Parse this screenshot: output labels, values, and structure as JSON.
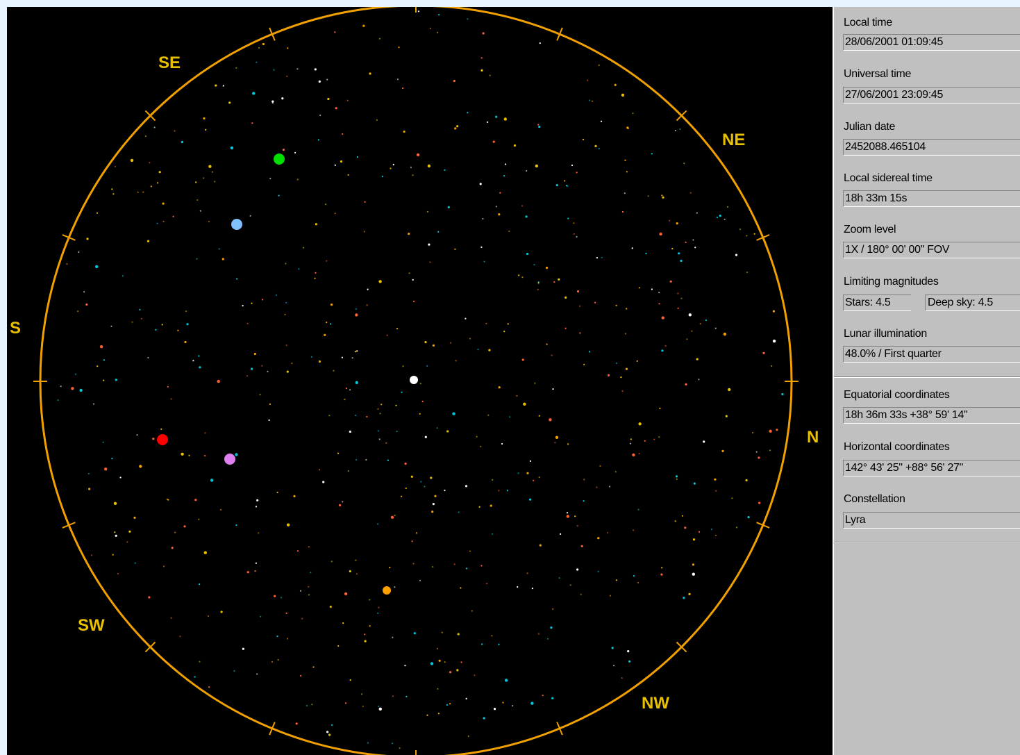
{
  "sky": {
    "background": "#000000",
    "horizon_color": "#f0a000",
    "compass": [
      {
        "label": "SE",
        "id": "se"
      },
      {
        "label": "NE",
        "id": "ne"
      },
      {
        "label": "S",
        "id": "s"
      },
      {
        "label": "N",
        "id": "n"
      },
      {
        "label": "SW",
        "id": "sw"
      },
      {
        "label": "NW",
        "id": "nw"
      }
    ],
    "planets": [
      {
        "name": "green-planet",
        "color": "#00e000"
      },
      {
        "name": "lightblue-planet",
        "color": "#80c0ff"
      },
      {
        "name": "red-planet",
        "color": "#ff0000"
      },
      {
        "name": "violet-planet",
        "color": "#e080f0"
      },
      {
        "name": "orange-planet",
        "color": "#ffa000"
      },
      {
        "name": "bright-white-star",
        "color": "#ffffff"
      }
    ],
    "star_colors": [
      "#ffffff",
      "#00c8d8",
      "#f0a000",
      "#e8c000",
      "#ff6030"
    ]
  },
  "info": {
    "local_time": {
      "label": "Local time",
      "value": "28/06/2001 01:09:45"
    },
    "universal_time": {
      "label": "Universal time",
      "value": "27/06/2001 23:09:45"
    },
    "julian_date": {
      "label": "Julian date",
      "value": "2452088.465104"
    },
    "sidereal_time": {
      "label": "Local sidereal time",
      "value": "18h 33m 15s"
    },
    "zoom_level": {
      "label": "Zoom level",
      "value": "1X / 180° 00' 00\" FOV"
    },
    "limiting_magnitudes": {
      "label": "Limiting magnitudes",
      "stars": "Stars: 4.5",
      "deep_sky": "Deep sky: 4.5"
    },
    "lunar_illumination": {
      "label": "Lunar illumination",
      "value": "48.0% / First quarter"
    },
    "equatorial": {
      "label": "Equatorial coordinates",
      "value": "18h 36m 33s +38° 59' 14\""
    },
    "horizontal": {
      "label": "Horizontal coordinates",
      "value": "142° 43' 25\" +88° 56' 27\""
    },
    "constellation": {
      "label": "Constellation",
      "value": "Lyra"
    }
  }
}
